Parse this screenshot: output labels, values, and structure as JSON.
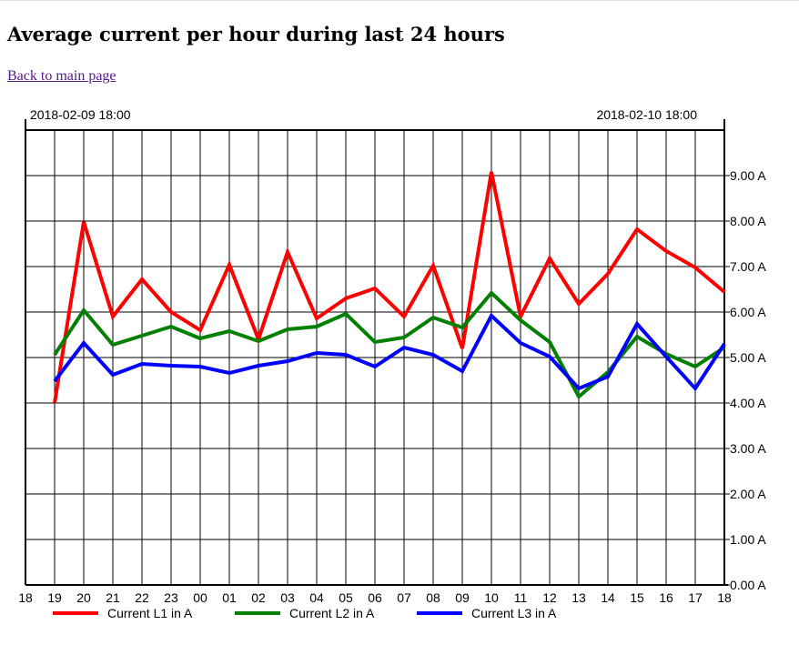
{
  "page": {
    "title": "Average current per hour during last 24 hours",
    "back_link": "Back to main page"
  },
  "chart_data": {
    "type": "line",
    "start_label": "2018-02-09 18:00",
    "end_label": "2018-02-10 18:00",
    "x": [
      "18",
      "19",
      "20",
      "21",
      "22",
      "23",
      "00",
      "01",
      "02",
      "03",
      "04",
      "05",
      "06",
      "07",
      "08",
      "09",
      "10",
      "11",
      "12",
      "13",
      "14",
      "15",
      "16",
      "17",
      "18"
    ],
    "ylim": [
      0,
      10
    ],
    "y_ticks": [
      "0.00 A",
      "1.00 A",
      "2.00 A",
      "3.00 A",
      "4.00 A",
      "5.00 A",
      "6.00 A",
      "7.00 A",
      "8.00 A",
      "9.00 A"
    ],
    "grid": true,
    "legend_position": "bottom",
    "series": [
      {
        "name": "Current L1 in A",
        "color": "#ff0000",
        "values": [
          null,
          4.0,
          7.98,
          5.9,
          6.72,
          6.0,
          5.6,
          7.04,
          5.4,
          7.32,
          5.86,
          6.3,
          6.52,
          5.9,
          7.02,
          5.2,
          9.08,
          5.9,
          7.18,
          6.18,
          6.84,
          7.82,
          7.34,
          6.98,
          6.44
        ]
      },
      {
        "name": "Current L2 in A",
        "color": "#008000",
        "values": [
          null,
          5.06,
          6.04,
          5.28,
          5.48,
          5.68,
          5.42,
          5.58,
          5.36,
          5.62,
          5.68,
          5.96,
          5.34,
          5.44,
          5.88,
          5.66,
          6.42,
          5.82,
          5.34,
          4.14,
          4.68,
          5.46,
          5.08,
          4.8,
          5.22
        ]
      },
      {
        "name": "Current L3 in A",
        "color": "#0000ff",
        "values": [
          null,
          4.48,
          5.32,
          4.62,
          4.86,
          4.82,
          4.8,
          4.66,
          4.82,
          4.92,
          5.1,
          5.06,
          4.8,
          5.22,
          5.06,
          4.7,
          5.92,
          5.32,
          5.02,
          4.32,
          4.58,
          5.74,
          5.02,
          4.32,
          5.3
        ]
      }
    ]
  }
}
